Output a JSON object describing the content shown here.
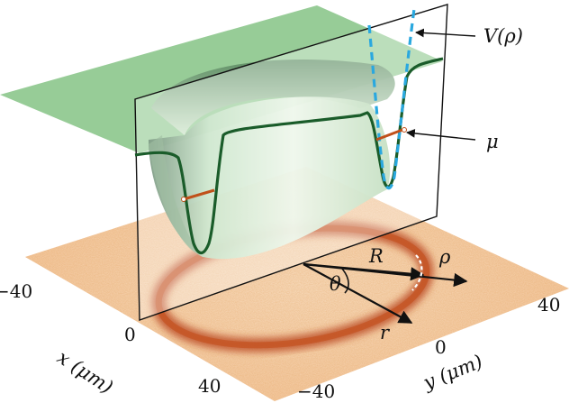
{
  "labels": {
    "potential": "V(ρ)",
    "chemical_potential": "μ",
    "radius": "R",
    "radial_coord": "ρ",
    "angle": "θ",
    "position_vector": "r"
  },
  "axes": {
    "x": {
      "label": "x (μm)",
      "ticks": [
        "−40",
        "0",
        "40"
      ]
    },
    "y": {
      "label": "y (μm)",
      "ticks": [
        "−40",
        "0",
        "40"
      ]
    }
  },
  "colors": {
    "surface": "#8cc68c",
    "surface_edge": "#1a5c2a",
    "potential_dashed": "#2aa8df",
    "chemical_potential_line": "#c0501a",
    "ring_density": "#b8421a",
    "floor": "#f6cfa6"
  }
}
